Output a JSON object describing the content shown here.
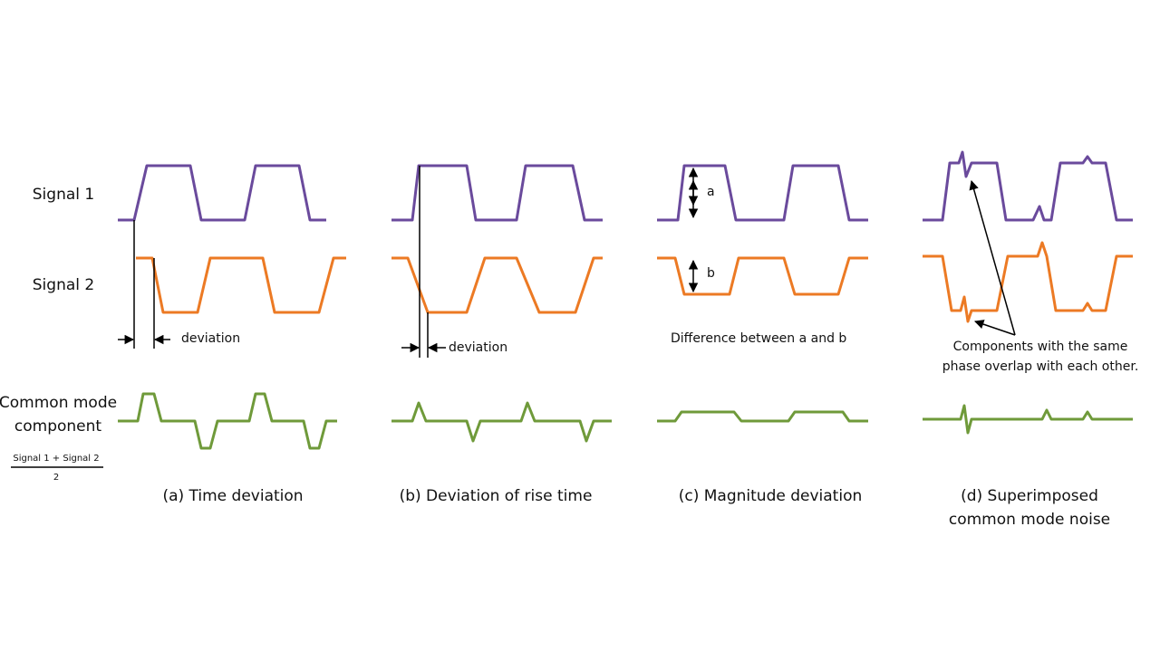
{
  "row_labels": {
    "signal1": "Signal 1",
    "signal2": "Signal 2",
    "common_mode": [
      "Common mode",
      "component"
    ]
  },
  "formula": {
    "numerator": "Signal 1 + Signal 2",
    "denominator": "2"
  },
  "panels": [
    {
      "caption": [
        "(a) Time deviation"
      ],
      "annotation": "deviation"
    },
    {
      "caption": [
        "(b) Deviation of rise time"
      ],
      "annotation": "deviation"
    },
    {
      "caption": [
        "(c) Magnitude deviation"
      ],
      "annotation": "Difference between a and b",
      "label_a": "a",
      "label_b": "b"
    },
    {
      "caption": [
        "(d) Superimposed",
        "common mode noise"
      ],
      "annotation": [
        "Components with the same",
        "phase overlap with each other."
      ]
    }
  ]
}
